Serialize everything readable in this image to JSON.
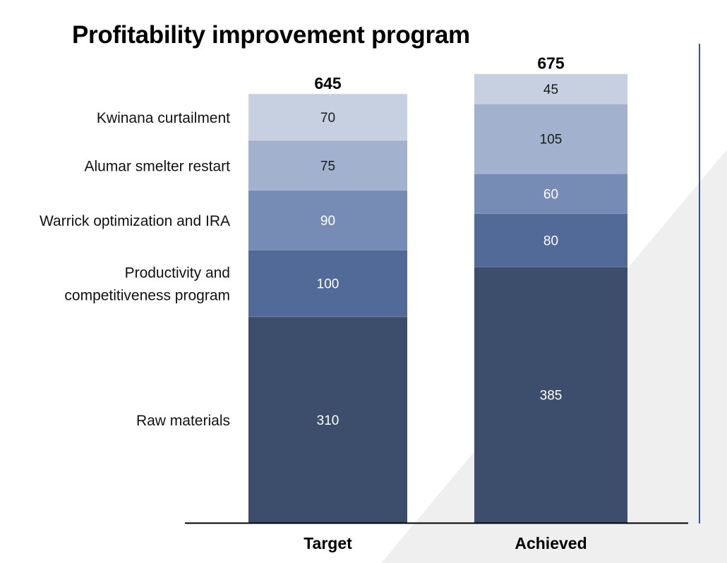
{
  "chart_data": {
    "type": "stacked-bar",
    "title": "Profitability improvement program",
    "categories": [
      "Target",
      "Achieved"
    ],
    "totals": [
      645,
      675
    ],
    "series": [
      {
        "name": "Raw materials",
        "values": [
          310,
          385
        ],
        "color": "#3d4e6c",
        "label_color": "#ffffff"
      },
      {
        "name": "Productivity and competitiveness program",
        "label_lines": [
          "Productivity and",
          "competitiveness program"
        ],
        "values": [
          100,
          80
        ],
        "color": "#526a98",
        "label_color": "#ffffff"
      },
      {
        "name": "Warrick optimization and IRA",
        "values": [
          90,
          60
        ],
        "color": "#768cb5",
        "label_color": "#ffffff"
      },
      {
        "name": "Alumar smelter restart",
        "values": [
          75,
          105
        ],
        "color": "#a2b1cd",
        "label_color": "#1a1a1a"
      },
      {
        "name": "Kwinana curtailment",
        "values": [
          70,
          45
        ],
        "color": "#c7d0e1",
        "label_color": "#1a1a1a"
      }
    ],
    "ylim": [
      0,
      645
    ],
    "xlabel": "",
    "ylabel": "",
    "legend": "left-aligned-to-target-bar",
    "colors": {
      "divider": "#2f5597",
      "background_shape": "#f0f0f0",
      "axis": "#000000"
    }
  }
}
